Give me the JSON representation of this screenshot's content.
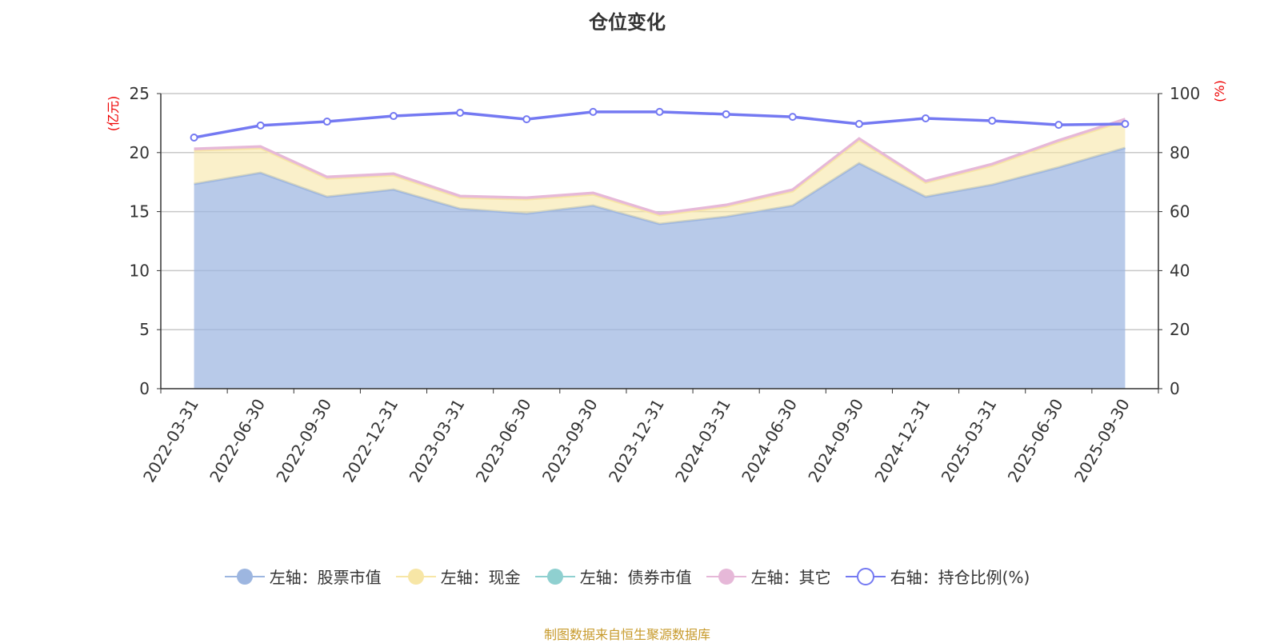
{
  "title": "仓位变化",
  "footer": "制图数据来自恒生聚源数据库",
  "chart_data": {
    "type": "area",
    "title": "仓位变化",
    "ylabel_left": "(亿元)",
    "ylabel_right": "(%)",
    "ylim_left": [
      0,
      25
    ],
    "ylim_right": [
      0,
      100
    ],
    "yticks_left": [
      0,
      5,
      10,
      15,
      20,
      25
    ],
    "yticks_right": [
      0,
      20,
      40,
      60,
      80,
      100
    ],
    "grid": true,
    "legend_position": "bottom",
    "categories": [
      "2022-03-31",
      "2022-06-30",
      "2022-09-30",
      "2022-12-31",
      "2023-03-31",
      "2023-06-30",
      "2023-09-30",
      "2023-12-31",
      "2024-03-31",
      "2024-06-30",
      "2024-09-30",
      "2024-12-31",
      "2025-03-31",
      "2025-06-30",
      "2025-09-30"
    ],
    "series": [
      {
        "name": "左轴：股票市值",
        "axis": "left",
        "stack": true,
        "color": "#9db6e0",
        "values": [
          17.34,
          18.29,
          16.26,
          16.87,
          15.24,
          14.84,
          15.51,
          13.96,
          14.57,
          15.51,
          19.1,
          16.26,
          17.28,
          18.75,
          20.4
        ]
      },
      {
        "name": "左轴：现金",
        "axis": "left",
        "stack": true,
        "color": "#f7e6a6",
        "values": [
          2.84,
          2.09,
          1.54,
          1.2,
          0.94,
          1.2,
          0.94,
          0.73,
          0.86,
          1.21,
          1.95,
          1.19,
          1.61,
          2.15,
          2.3
        ]
      },
      {
        "name": "左轴：债券市值",
        "axis": "left",
        "stack": true,
        "color": "#8fd0d0",
        "values": [
          0,
          0,
          0,
          0,
          0,
          0,
          0,
          0,
          0,
          0,
          0,
          0,
          0,
          0,
          0
        ]
      },
      {
        "name": "左轴：其它",
        "axis": "left",
        "stack": true,
        "color": "#e6b8d8",
        "values": [
          0.15,
          0.15,
          0.15,
          0.15,
          0.15,
          0.15,
          0.15,
          0.15,
          0.15,
          0.15,
          0.15,
          0.15,
          0.15,
          0.15,
          0.15
        ]
      },
      {
        "name": "右轴：持仓比例(%)",
        "axis": "right",
        "stack": false,
        "color": "#7479f2",
        "values": [
          85.1,
          89.2,
          90.5,
          92.4,
          93.5,
          91.3,
          93.8,
          93.8,
          93.0,
          92.1,
          89.7,
          91.6,
          90.8,
          89.4,
          89.7
        ]
      }
    ]
  }
}
